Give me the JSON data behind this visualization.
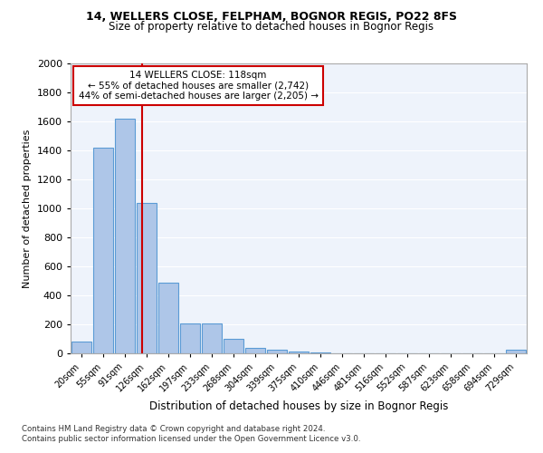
{
  "title1": "14, WELLERS CLOSE, FELPHAM, BOGNOR REGIS, PO22 8FS",
  "title2": "Size of property relative to detached houses in Bognor Regis",
  "xlabel": "Distribution of detached houses by size in Bognor Regis",
  "ylabel": "Number of detached properties",
  "bar_labels": [
    "20sqm",
    "55sqm",
    "91sqm",
    "126sqm",
    "162sqm",
    "197sqm",
    "233sqm",
    "268sqm",
    "304sqm",
    "339sqm",
    "375sqm",
    "410sqm",
    "446sqm",
    "481sqm",
    "516sqm",
    "552sqm",
    "587sqm",
    "623sqm",
    "658sqm",
    "694sqm",
    "729sqm"
  ],
  "bar_heights": [
    80,
    1420,
    1620,
    1040,
    490,
    205,
    205,
    100,
    40,
    25,
    10,
    5,
    3,
    2,
    2,
    1,
    1,
    1,
    1,
    1,
    25
  ],
  "bar_color": "#aec6e8",
  "bar_edge_color": "#5b9bd5",
  "annotation_text_line1": "14 WELLERS CLOSE: 118sqm",
  "annotation_text_line2": "← 55% of detached houses are smaller (2,742)",
  "annotation_text_line3": "44% of semi-detached houses are larger (2,205) →",
  "annotation_box_color": "#ffffff",
  "annotation_box_edge": "#cc0000",
  "vline_color": "#cc0000",
  "footer1": "Contains HM Land Registry data © Crown copyright and database right 2024.",
  "footer2": "Contains public sector information licensed under the Open Government Licence v3.0.",
  "ylim": [
    0,
    2000
  ],
  "yticks": [
    0,
    200,
    400,
    600,
    800,
    1000,
    1200,
    1400,
    1600,
    1800,
    2000
  ]
}
